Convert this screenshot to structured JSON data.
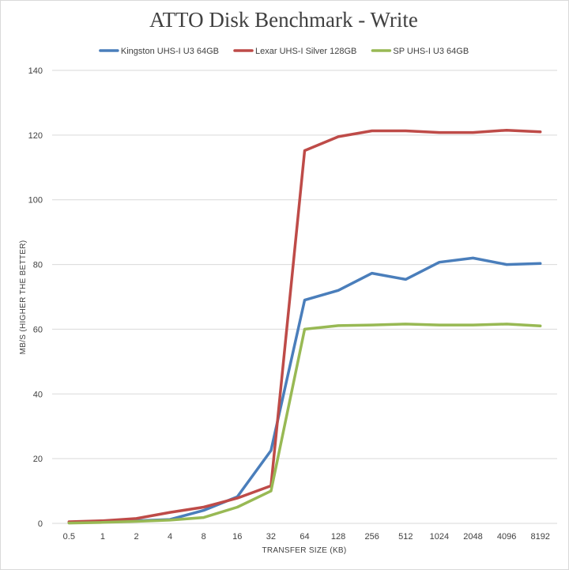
{
  "chart_data": {
    "type": "line",
    "title": "ATTO Disk Benchmark - Write",
    "xlabel": "TRANSFER SIZE (KB)",
    "ylabel": "MB/S (HIGHER THE BETTER)",
    "categories": [
      "0.5",
      "1",
      "2",
      "4",
      "8",
      "16",
      "32",
      "64",
      "128",
      "256",
      "512",
      "1024",
      "2048",
      "4096",
      "8192"
    ],
    "ylim": [
      0,
      140
    ],
    "yticks": [
      0,
      20,
      40,
      60,
      80,
      100,
      120,
      140
    ],
    "grid": "horizontal",
    "legend_position": "top",
    "series": [
      {
        "name": "Kingston UHS-I U3 64GB",
        "color": "#4a7ebb",
        "values": [
          0.2,
          0.4,
          0.8,
          1.2,
          4.0,
          8.2,
          22.5,
          69.0,
          72.0,
          77.3,
          75.4,
          80.7,
          82.0,
          80.0,
          80.3
        ]
      },
      {
        "name": "Lexar UHS-I Silver 128GB",
        "color": "#be4b48",
        "values": [
          0.5,
          0.8,
          1.5,
          3.4,
          5.0,
          7.8,
          11.6,
          115.2,
          119.5,
          121.3,
          121.3,
          120.8,
          120.8,
          121.5,
          121.0
        ]
      },
      {
        "name": "SP UHS-I U3 64GB",
        "color": "#98b954",
        "values": [
          0.1,
          0.3,
          0.6,
          1.0,
          1.8,
          5.0,
          10.0,
          60.0,
          61.1,
          61.3,
          61.6,
          61.3,
          61.3,
          61.6,
          61.0
        ]
      }
    ]
  }
}
